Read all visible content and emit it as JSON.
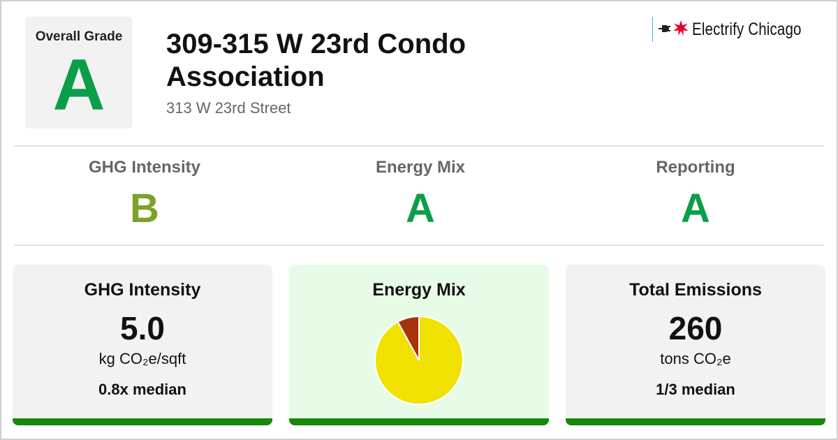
{
  "header": {
    "overall_grade_label": "Overall Grade",
    "overall_grade": "A",
    "title": "309-315 W 23rd Condo Association",
    "address": "313 W 23rd Street"
  },
  "brand": {
    "plug_icon": "plug-icon",
    "star_icon": "chicago-star-icon",
    "name": "Electrify Chicago",
    "flag_color": "#41b6e6",
    "star_color": "#e4002b"
  },
  "grades": [
    {
      "name": "GHG Intensity",
      "value": "B",
      "color": "#7aa329"
    },
    {
      "name": "Energy Mix",
      "value": "A",
      "color": "#0a9e4a"
    },
    {
      "name": "Reporting",
      "value": "A",
      "color": "#0a9e4a"
    }
  ],
  "cards": {
    "ghg": {
      "title": "GHG Intensity",
      "value": "5.0",
      "unit": "kg CO₂e/sqft",
      "median": "0.8x median"
    },
    "mix": {
      "title": "Energy Mix"
    },
    "emissions": {
      "title": "Total Emissions",
      "value": "260",
      "unit": "tons CO₂e",
      "median": "1/3 median"
    }
  },
  "colors": {
    "grade_a": "#0a9e4a",
    "grade_b": "#7aa329",
    "card_bar": "#17880b",
    "mix_card_bg": "#e8fbe6"
  },
  "chart_data": {
    "type": "pie",
    "categories": [
      "",
      ""
    ],
    "values": [
      92,
      8
    ],
    "colors": [
      "#f0e100",
      "#a8320a"
    ]
  }
}
